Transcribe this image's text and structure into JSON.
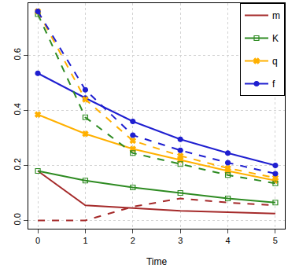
{
  "chart_data": {
    "type": "line",
    "x_label": "Time",
    "x": [
      0,
      1,
      2,
      3,
      4,
      5
    ],
    "xlim": [
      -0.2,
      5.2
    ],
    "xticks": [
      0,
      1,
      2,
      3,
      4,
      5
    ],
    "ylim": [
      -0.03,
      0.79
    ],
    "yticks": [
      {
        "value": 0,
        "label": "0.0"
      },
      {
        "value": 0.2,
        "label": "0.2"
      },
      {
        "value": 0.4,
        "label": "0.4"
      },
      {
        "value": 0.6,
        "label": "0.6"
      }
    ],
    "grid": true,
    "legend": "topright",
    "series": [
      {
        "name": "m",
        "color": "#a52a2a",
        "marker": "none",
        "line_style": "solid",
        "values": [
          0.18,
          0.055,
          0.045,
          0.035,
          0.03,
          0.025
        ]
      },
      {
        "name": "K",
        "color": "#2e8b22",
        "marker": "square-open",
        "line_style": "solid",
        "values": [
          0.18,
          0.145,
          0.12,
          0.1,
          0.08,
          0.065
        ]
      },
      {
        "name": "q",
        "color": "#ffb000",
        "marker": "x",
        "line_style": "solid",
        "values": [
          0.385,
          0.315,
          0.26,
          0.22,
          0.18,
          0.145
        ]
      },
      {
        "name": "f",
        "color": "#1f1fd0",
        "marker": "circle",
        "line_style": "solid",
        "values": [
          0.535,
          0.445,
          0.36,
          0.295,
          0.245,
          0.2
        ]
      },
      {
        "name": "m",
        "color": "#a52a2a",
        "marker": "none",
        "line_style": "dashed",
        "values": [
          0,
          0,
          0.05,
          0.08,
          0.065,
          0.055
        ]
      },
      {
        "name": "K",
        "color": "#2e8b22",
        "marker": "square-open",
        "line_style": "dashed",
        "values": [
          0.75,
          0.375,
          0.245,
          0.205,
          0.165,
          0.135
        ]
      },
      {
        "name": "q",
        "color": "#ffb000",
        "marker": "x",
        "line_style": "dashed",
        "values": [
          0.76,
          0.44,
          0.29,
          0.235,
          0.19,
          0.155
        ]
      },
      {
        "name": "f",
        "color": "#1f1fd0",
        "marker": "circle",
        "line_style": "dashed",
        "values": [
          0.76,
          0.475,
          0.31,
          0.255,
          0.21,
          0.17
        ]
      }
    ]
  }
}
